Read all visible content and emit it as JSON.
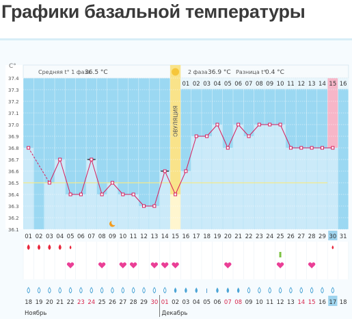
{
  "page_title": "Графики базальной температуры",
  "chart_data": {
    "type": "line",
    "y_unit": "C°",
    "ylim": [
      36.1,
      37.4
    ],
    "y_ticks": [
      "37.4",
      "37.3",
      "37.2",
      "37.1",
      "37.0",
      "36.9",
      "36.8",
      "36.7",
      "36.6",
      "36.5",
      "36.4",
      "36.3",
      "36.2",
      "36.1"
    ],
    "header": {
      "phase1_label": "Средняя t° 1 фаза",
      "phase1_value": "36.5 °C",
      "phase2_label": "2 фаза",
      "phase2_value": "36.9 °C",
      "diff_label": "Разница t°",
      "diff_value": "0.4 °C"
    },
    "ovulation_label": "ОВУЛЯЦИЯ",
    "ovulation_day_index": 14,
    "cycle_days": [
      "01",
      "02",
      "03",
      "04",
      "05",
      "06",
      "07",
      "08",
      "09",
      "10",
      "11",
      "12",
      "13",
      "14",
      "15",
      "16",
      "17",
      "18",
      "19",
      "20",
      "21",
      "22",
      "23",
      "24",
      "25",
      "26",
      "27",
      "28",
      "29",
      "30",
      "31"
    ],
    "bottom_cycle_days": [
      "01",
      "02",
      "03",
      "04",
      "05",
      "06",
      "07",
      "08",
      "09",
      "10",
      "11",
      "12",
      "13",
      "14",
      "15",
      "16",
      "17",
      "18",
      "19",
      "20",
      "21",
      "22",
      "23",
      "24",
      "25",
      "26",
      "27",
      "28",
      "29",
      "30",
      "31"
    ],
    "top_cycle_days_phase2": [
      "01",
      "02",
      "03",
      "04",
      "05",
      "06",
      "07",
      "08",
      "09",
      "10",
      "11",
      "12",
      "13",
      "14",
      "15",
      "16"
    ],
    "highlight_day_index": 29,
    "temperatures": [
      36.8,
      null,
      36.5,
      36.7,
      36.4,
      36.4,
      36.7,
      36.4,
      36.5,
      36.4,
      36.4,
      36.3,
      36.3,
      36.6,
      36.4,
      36.6,
      36.9,
      36.9,
      37.0,
      36.8,
      37.0,
      36.9,
      37.0,
      37.0,
      37.0,
      36.8,
      36.8,
      36.8,
      36.8,
      36.8,
      null
    ],
    "cover_line": 36.5,
    "excluded_day_markers": [
      6,
      13
    ],
    "calendar_dates": [
      "18",
      "19",
      "20",
      "21",
      "22",
      "23",
      "24",
      "25",
      "26",
      "27",
      "28",
      "29",
      "30",
      "01",
      "02",
      "03",
      "04",
      "05",
      "06",
      "07",
      "08",
      "09",
      "10",
      "11",
      "12",
      "13",
      "14",
      "15",
      "16",
      "17",
      "18"
    ],
    "weekend_date_indices": [
      5,
      6,
      12,
      13,
      19,
      20,
      26,
      27
    ],
    "today_date_index": 29,
    "month_left": "Ноябрь",
    "month_right": "Декабрь",
    "month_split_index": 13,
    "bleeding_days": [
      0,
      1,
      2,
      3,
      4,
      29
    ],
    "heart_days": [
      4,
      7,
      9,
      10,
      12,
      13,
      14,
      19,
      24,
      27
    ],
    "test_days": [
      24
    ],
    "moon_day_index": 8,
    "colors": {
      "plot_bg": "#9bd8f2",
      "bar_fill": "#cbeaf9",
      "line": "#d81b5a",
      "point_fill": "#ffffff",
      "ovulation": "#f9e38a",
      "highlight_pink": "#f7b6c8",
      "weekend_text": "#d7234a",
      "today_bg": "#9fd4ee"
    }
  }
}
